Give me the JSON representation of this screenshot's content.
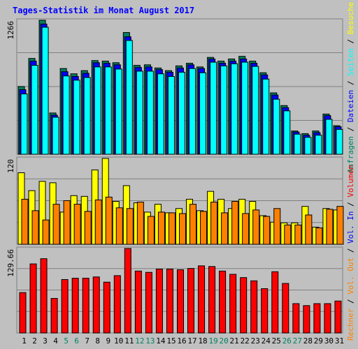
{
  "title": "Tages-Statistik im Monat August 2017",
  "colors": {
    "background": "#c0c0c0",
    "title": "#0000ff",
    "hits": "#008060",
    "files": "#0000ff",
    "pages": "#00ffff",
    "visits": "#ffff00",
    "kbytes_in": "#ff0000",
    "kbytes_out": "#ff8000",
    "volume": "#ff0000",
    "weekend_label": "#008060"
  },
  "top_legend": [
    {
      "text": "Anfragen",
      "color": "#008060"
    },
    {
      "text": "Dateien",
      "color": "#0000ff"
    },
    {
      "text": "Seiten",
      "color": "#00ffff"
    },
    {
      "text": "Besuche",
      "color": "#ffff00"
    }
  ],
  "bottom_legend": [
    {
      "text": "Rechner",
      "color": "#ff8000"
    },
    {
      "text": "Vol. Out",
      "color": "#ff8000"
    },
    {
      "text": "Vol. In",
      "color": "#0000ff"
    },
    {
      "text": "Volumen",
      "color": "#ff0000"
    }
  ],
  "chart_data": [
    {
      "type": "bar",
      "ymax_label": "1266",
      "ylim": [
        0,
        1266
      ],
      "series": [
        {
          "name": "Anfragen",
          "values": [
            640,
            905,
            1266,
            390,
            810,
            760,
            790,
            885,
            880,
            865,
            1150,
            840,
            845,
            815,
            790,
            835,
            860,
            825,
            915,
            880,
            900,
            925,
            880,
            770,
            580,
            460,
            220,
            195,
            220,
            380,
            270
          ]
        },
        {
          "name": "Dateien",
          "values": [
            610,
            880,
            1230,
            370,
            780,
            735,
            765,
            865,
            860,
            845,
            1110,
            820,
            825,
            800,
            775,
            815,
            845,
            810,
            900,
            860,
            880,
            900,
            860,
            750,
            560,
            440,
            210,
            180,
            205,
            365,
            260
          ]
        },
        {
          "name": "Seiten",
          "values": [
            570,
            840,
            1200,
            350,
            740,
            700,
            725,
            825,
            825,
            805,
            1075,
            785,
            785,
            760,
            735,
            775,
            810,
            770,
            870,
            835,
            855,
            870,
            830,
            710,
            520,
            410,
            190,
            160,
            180,
            330,
            235
          ]
        }
      ],
      "categories": [
        "1",
        "2",
        "3",
        "4",
        "5",
        "6",
        "7",
        "8",
        "9",
        "10",
        "11",
        "12",
        "13",
        "14",
        "15",
        "16",
        "17",
        "18",
        "19",
        "20",
        "21",
        "22",
        "23",
        "24",
        "25",
        "26",
        "27",
        "28",
        "29",
        "30",
        "31"
      ]
    },
    {
      "type": "bar",
      "ymax_label": "120",
      "ylim": [
        0,
        120
      ],
      "series": [
        {
          "name": "Besuche",
          "values": [
            100,
            75,
            88,
            86,
            45,
            68,
            67,
            104,
            120,
            60,
            82,
            58,
            45,
            56,
            44,
            50,
            63,
            47,
            74,
            63,
            50,
            63,
            60,
            40,
            31,
            30,
            30,
            53,
            24,
            50,
            48
          ]
        },
        {
          "name": "Rechner",
          "values": [
            63,
            47,
            34,
            56,
            61,
            56,
            46,
            62,
            66,
            51,
            50,
            59,
            39,
            45,
            44,
            43,
            56,
            46,
            59,
            44,
            60,
            43,
            48,
            39,
            50,
            27,
            27,
            41,
            23,
            49,
            53
          ]
        }
      ],
      "categories": [
        "1",
        "2",
        "3",
        "4",
        "5",
        "6",
        "7",
        "8",
        "9",
        "10",
        "11",
        "12",
        "13",
        "14",
        "15",
        "16",
        "17",
        "18",
        "19",
        "20",
        "21",
        "22",
        "23",
        "24",
        "25",
        "26",
        "27",
        "28",
        "29",
        "30",
        "31"
      ]
    },
    {
      "type": "bar",
      "ymax_label": "129.66",
      "ylim": [
        0,
        129.66
      ],
      "series": [
        {
          "name": "Volumen",
          "values": [
            62,
            106,
            114,
            53,
            82,
            84,
            84,
            86,
            78,
            88,
            129.66,
            95,
            93,
            98,
            98,
            97,
            99,
            103,
            102,
            95,
            90,
            85,
            80,
            68,
            94,
            76,
            45,
            42,
            45,
            45,
            49
          ]
        }
      ],
      "categories": [
        "1",
        "2",
        "3",
        "4",
        "5",
        "6",
        "7",
        "8",
        "9",
        "10",
        "11",
        "12",
        "13",
        "14",
        "15",
        "16",
        "17",
        "18",
        "19",
        "20",
        "21",
        "22",
        "23",
        "24",
        "25",
        "26",
        "27",
        "28",
        "29",
        "30",
        "31"
      ]
    }
  ],
  "x_axis": {
    "labels": [
      "1",
      "2",
      "3",
      "4",
      "5",
      "6",
      "7",
      "8",
      "9",
      "10",
      "11",
      "12",
      "13",
      "14",
      "15",
      "16",
      "17",
      "18",
      "19",
      "20",
      "21",
      "22",
      "23",
      "24",
      "25",
      "26",
      "27",
      "28",
      "29",
      "30",
      "31"
    ],
    "weekend_days": [
      "5",
      "6",
      "12",
      "13",
      "19",
      "20",
      "26",
      "27"
    ]
  }
}
